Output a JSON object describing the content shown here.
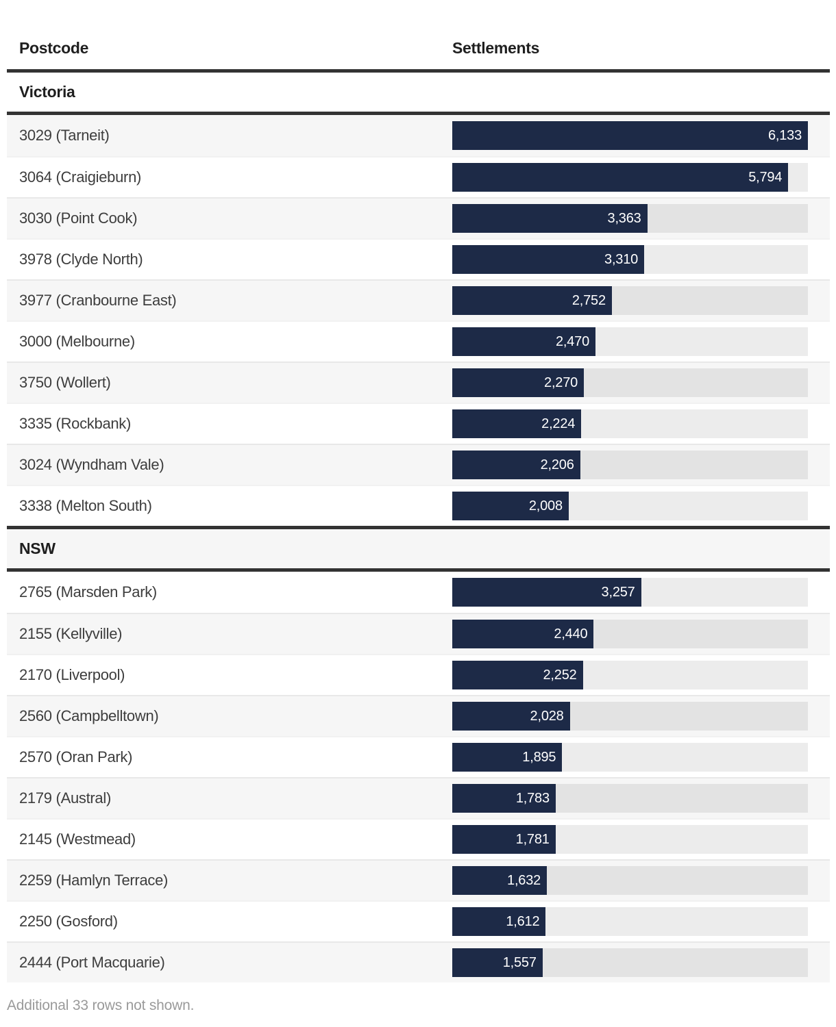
{
  "header": {
    "col_postcode": "Postcode",
    "col_settlements": "Settlements"
  },
  "footer": {
    "note": "Additional 33 rows not shown."
  },
  "colors": {
    "bar": "#1d2a47",
    "bar_track": "#ececec",
    "row_stripe": "#f6f6f6",
    "section_border": "#333333",
    "header_text": "#1f1f1f",
    "row_text": "#3d3d3d",
    "bar_value_text": "#ffffff",
    "footer_text": "#9a9a9a"
  },
  "chart_data": {
    "type": "bar",
    "category_column": "Postcode",
    "value_column": "Settlements",
    "max_value": 6133,
    "legend": "none",
    "grid": "off",
    "sections": [
      {
        "label": "Victoria",
        "rows": [
          {
            "postcode": "3029 (Tarneit)",
            "value": 6133,
            "value_label": "6,133"
          },
          {
            "postcode": "3064 (Craigieburn)",
            "value": 5794,
            "value_label": "5,794"
          },
          {
            "postcode": "3030 (Point Cook)",
            "value": 3363,
            "value_label": "3,363"
          },
          {
            "postcode": "3978 (Clyde North)",
            "value": 3310,
            "value_label": "3,310"
          },
          {
            "postcode": "3977 (Cranbourne East)",
            "value": 2752,
            "value_label": "2,752"
          },
          {
            "postcode": "3000 (Melbourne)",
            "value": 2470,
            "value_label": "2,470"
          },
          {
            "postcode": "3750 (Wollert)",
            "value": 2270,
            "value_label": "2,270"
          },
          {
            "postcode": "3335 (Rockbank)",
            "value": 2224,
            "value_label": "2,224"
          },
          {
            "postcode": "3024 (Wyndham Vale)",
            "value": 2206,
            "value_label": "2,206"
          },
          {
            "postcode": "3338 (Melton South)",
            "value": 2008,
            "value_label": "2,008"
          }
        ]
      },
      {
        "label": "NSW",
        "rows": [
          {
            "postcode": "2765 (Marsden Park)",
            "value": 3257,
            "value_label": "3,257"
          },
          {
            "postcode": "2155 (Kellyville)",
            "value": 2440,
            "value_label": "2,440"
          },
          {
            "postcode": "2170 (Liverpool)",
            "value": 2252,
            "value_label": "2,252"
          },
          {
            "postcode": "2560 (Campbelltown)",
            "value": 2028,
            "value_label": "2,028"
          },
          {
            "postcode": "2570 (Oran Park)",
            "value": 1895,
            "value_label": "1,895"
          },
          {
            "postcode": "2179 (Austral)",
            "value": 1783,
            "value_label": "1,783"
          },
          {
            "postcode": "2145 (Westmead)",
            "value": 1781,
            "value_label": "1,781"
          },
          {
            "postcode": "2259 (Hamlyn Terrace)",
            "value": 1632,
            "value_label": "1,632"
          },
          {
            "postcode": "2250 (Gosford)",
            "value": 1612,
            "value_label": "1,612"
          },
          {
            "postcode": "2444 (Port Macquarie)",
            "value": 1557,
            "value_label": "1,557"
          }
        ]
      }
    ]
  }
}
